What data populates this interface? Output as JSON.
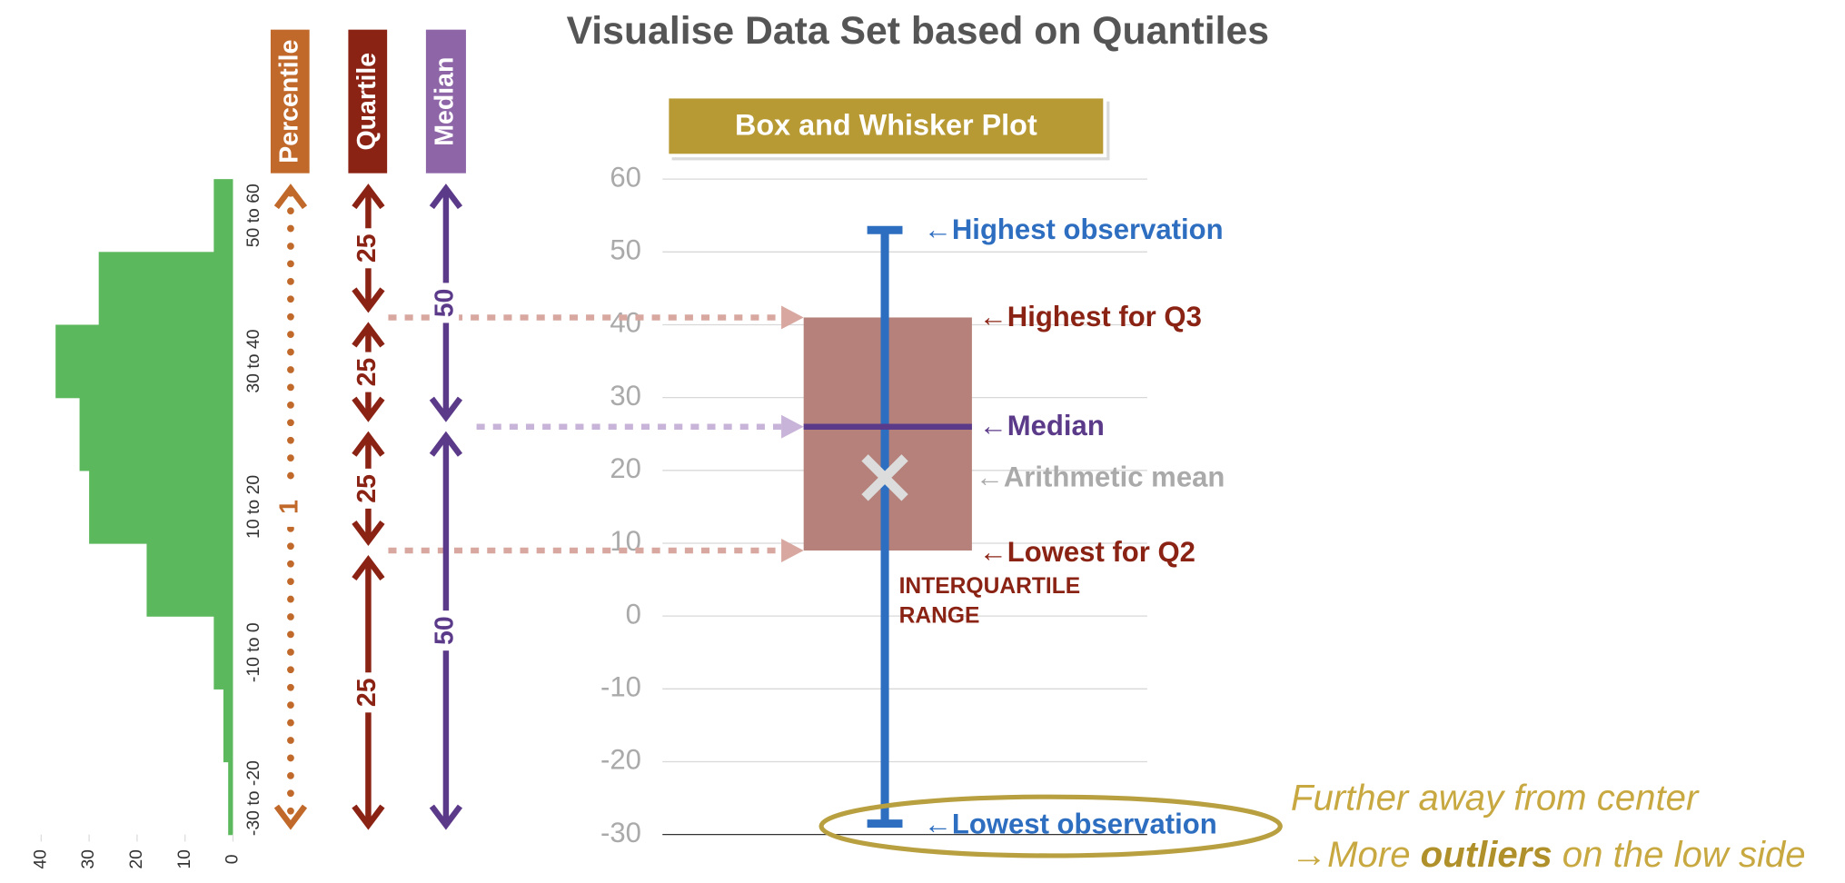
{
  "title": "Visualise Data Set based on Quantiles",
  "headers": [
    "Percentile",
    "Quartile",
    "Median"
  ],
  "percentile_labels": [
    "1"
  ],
  "quartile_labels": [
    "25",
    "25",
    "25",
    "25"
  ],
  "median_labels": [
    "50",
    "50"
  ],
  "annotations": {
    "high": "←Highest observation",
    "q3": "←Highest for Q3",
    "median": "←Median",
    "mean": "←Arithmetic mean",
    "q1": "←Lowest for Q2",
    "iqr": [
      "INTERQUARTILE",
      "RANGE"
    ],
    "low": "←Lowest observation"
  },
  "note": {
    "line1": "Further away from center",
    "line2": [
      "→More ",
      "outliers",
      " on the low side"
    ]
  },
  "chart_data": [
    {
      "type": "hbar",
      "categories": [
        "-30 to -20",
        null,
        "-10 to 0",
        null,
        "10 to 20",
        null,
        "30 to 40",
        null,
        "50 to 60"
      ],
      "values": [
        1,
        2,
        4,
        18,
        30,
        32,
        37,
        28,
        4
      ],
      "color": "#5cb85c",
      "xlim": [
        0,
        40
      ],
      "xticks": [
        0,
        10,
        20,
        30,
        40
      ]
    },
    {
      "type": "box",
      "title": "Box and Whisker Plot",
      "low": -28.5,
      "q1": 9,
      "median": 26,
      "q3": 41,
      "high": 53,
      "mean": 19,
      "ylim": [
        -30,
        60
      ],
      "yticks": [
        -30,
        -20,
        -10,
        0,
        10,
        20,
        30,
        40,
        50,
        60
      ],
      "grid": true,
      "colors": {
        "box": "#b5817a",
        "whisker": "#2e6ec0",
        "median": "#5c3a8a",
        "mean": "#dcdcdc"
      }
    }
  ]
}
